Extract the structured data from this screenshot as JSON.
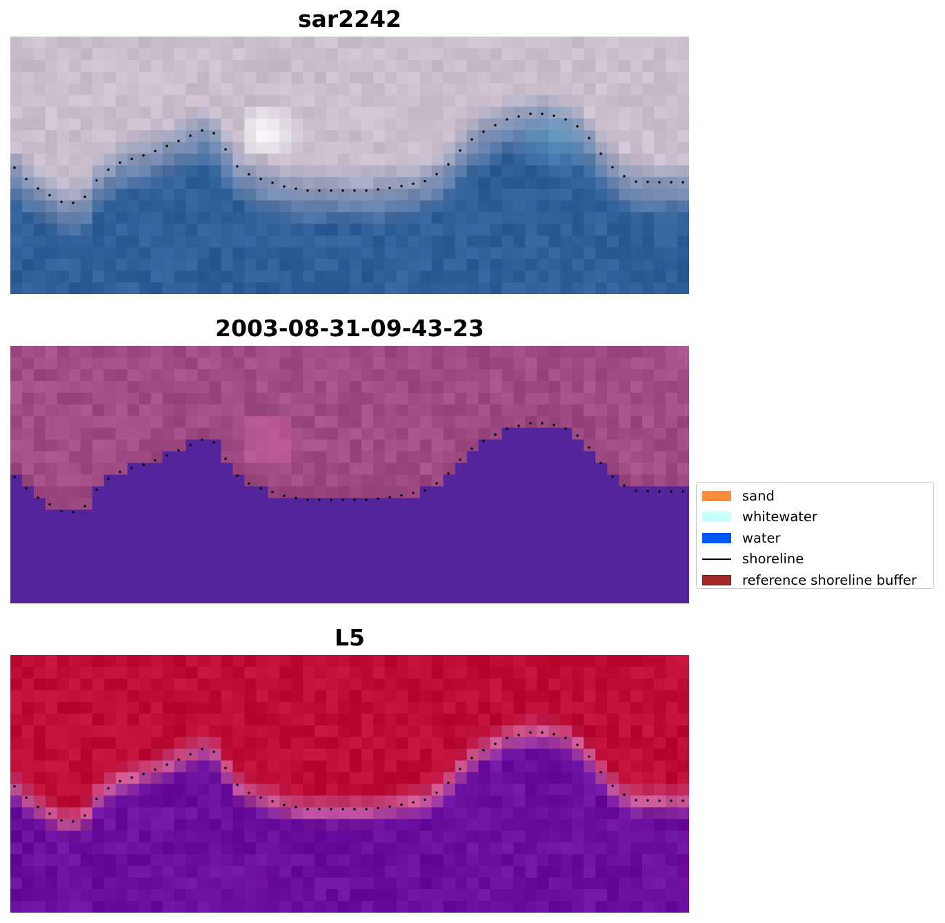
{
  "panels": [
    {
      "title": "sar2242",
      "style": "rgb"
    },
    {
      "title": "2003-08-31-09-43-23",
      "style": "class"
    },
    {
      "title": "L5",
      "style": "index"
    }
  ],
  "legend": {
    "items": [
      {
        "label": "sand",
        "color": "#ff8c3a",
        "kind": "patch"
      },
      {
        "label": "whitewater",
        "color": "#c8fffc",
        "kind": "patch"
      },
      {
        "label": "water",
        "color": "#0055ff",
        "kind": "patch"
      },
      {
        "label": "shoreline",
        "color": "#000000",
        "kind": "line"
      },
      {
        "label": "reference shoreline buffer",
        "color": "#a02a2a",
        "edge": "#7a1515",
        "kind": "patch"
      }
    ]
  },
  "colors": {
    "water_class": "#53249b",
    "land_class": "#a24c84",
    "index_land": "#bd0d36",
    "index_water": "#6a0fa0",
    "rgb_water": "#2f609a",
    "rgb_land": "#cbbfce"
  }
}
